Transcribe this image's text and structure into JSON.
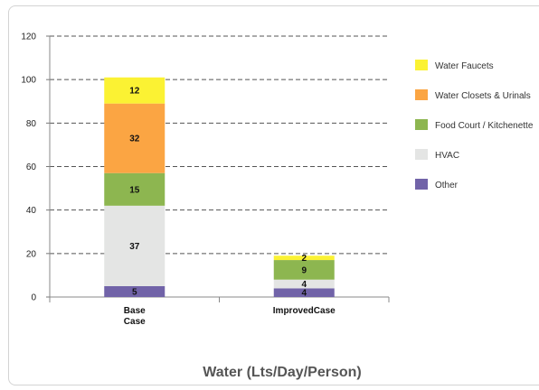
{
  "chart_data": {
    "type": "bar",
    "stacked": true,
    "title": "Water (Lts/Day/Person)",
    "categories": [
      [
        "Base",
        "Case"
      ],
      [
        "ImprovedCase"
      ]
    ],
    "ylim": [
      0,
      120
    ],
    "yticks": [
      0,
      20,
      40,
      60,
      80,
      100,
      120
    ],
    "grid": "dashed-horizontal",
    "legend_position": "right",
    "series": [
      {
        "name": "Other",
        "color": "#7163a8",
        "values": [
          5,
          4
        ]
      },
      {
        "name": "HVAC",
        "color": "#e4e5e4",
        "values": [
          37,
          4
        ]
      },
      {
        "name": "Food Court / Kitchenette",
        "color": "#8db650",
        "values": [
          15,
          9
        ]
      },
      {
        "name": "Water Closets & Urinals",
        "color": "#fba543",
        "values": [
          32,
          0
        ]
      },
      {
        "name": "Water Faucets",
        "color": "#fbf233",
        "values": [
          12,
          2
        ]
      }
    ],
    "legend_order": [
      "Water Faucets",
      "Water Closets & Urinals",
      "Food Court / Kitchenette",
      "HVAC",
      "Other"
    ]
  }
}
